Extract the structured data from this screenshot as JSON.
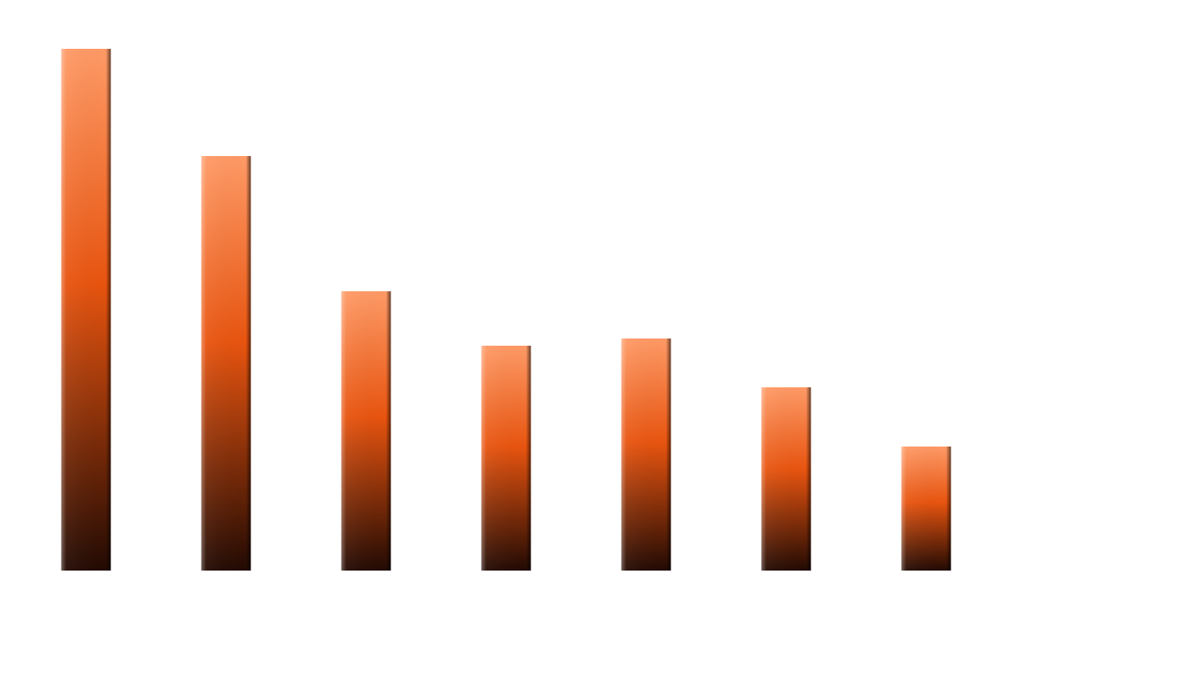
{
  "chart_data": {
    "type": "bar",
    "values": [
      652,
      518,
      349,
      281,
      290,
      229,
      155
    ],
    "color": "#e8540f"
  }
}
